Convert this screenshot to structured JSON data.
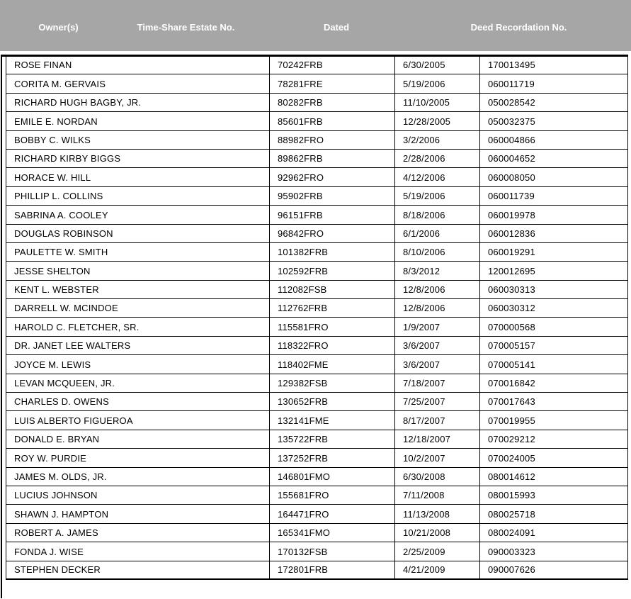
{
  "header": {
    "columns": [
      "Owner(s)",
      "Time-Share Estate No.",
      "Dated",
      "Deed Recordation No."
    ]
  },
  "colors": {
    "header_bg": "#a6a6a6",
    "header_text": "#ffffff",
    "border": "#000000"
  },
  "table": {
    "column_keys": [
      "owner",
      "estate_no",
      "dated",
      "deed_no"
    ],
    "rows": [
      {
        "owner": "ROSE FINAN",
        "estate_no": "70242FRB",
        "dated": "6/30/2005",
        "deed_no": "170013495"
      },
      {
        "owner": "CORITA M. GERVAIS",
        "estate_no": "78281FRE",
        "dated": "5/19/2006",
        "deed_no": "060011719"
      },
      {
        "owner": "RICHARD HUGH BAGBY, JR.",
        "estate_no": "80282FRB",
        "dated": "11/10/2005",
        "deed_no": "050028542"
      },
      {
        "owner": "EMILE E. NORDAN",
        "estate_no": "85601FRB",
        "dated": "12/28/2005",
        "deed_no": "050032375"
      },
      {
        "owner": "BOBBY C. WILKS",
        "estate_no": "88982FRO",
        "dated": "3/2/2006",
        "deed_no": "060004866"
      },
      {
        "owner": "RICHARD KIRBY BIGGS",
        "estate_no": "89862FRB",
        "dated": "2/28/2006",
        "deed_no": "060004652"
      },
      {
        "owner": "HORACE W. HILL",
        "estate_no": "92962FRO",
        "dated": "4/12/2006",
        "deed_no": "060008050"
      },
      {
        "owner": "PHILLIP L. COLLINS",
        "estate_no": "95902FRB",
        "dated": "5/19/2006",
        "deed_no": "060011739"
      },
      {
        "owner": "SABRINA A. COOLEY",
        "estate_no": "96151FRB",
        "dated": "8/18/2006",
        "deed_no": "060019978"
      },
      {
        "owner": "DOUGLAS ROBINSON",
        "estate_no": "96842FRO",
        "dated": "6/1/2006",
        "deed_no": "060012836"
      },
      {
        "owner": "PAULETTE W. SMITH",
        "estate_no": "101382FRB",
        "dated": "8/10/2006",
        "deed_no": "060019291"
      },
      {
        "owner": "JESSE SHELTON",
        "estate_no": "102592FRB",
        "dated": "8/3/2012",
        "deed_no": "120012695"
      },
      {
        "owner": "KENT L. WEBSTER",
        "estate_no": "112082FSB",
        "dated": "12/8/2006",
        "deed_no": "060030313"
      },
      {
        "owner": "DARRELL W. MCINDOE",
        "estate_no": "112762FRB",
        "dated": "12/8/2006",
        "deed_no": "060030312"
      },
      {
        "owner": "HAROLD C. FLETCHER, SR.",
        "estate_no": "115581FRO",
        "dated": "1/9/2007",
        "deed_no": "070000568"
      },
      {
        "owner": "DR. JANET LEE WALTERS",
        "estate_no": "118322FRO",
        "dated": "3/6/2007",
        "deed_no": "070005157"
      },
      {
        "owner": "JOYCE M. LEWIS",
        "estate_no": "118402FME",
        "dated": "3/6/2007",
        "deed_no": "070005141"
      },
      {
        "owner": "LEVAN MCQUEEN, JR.",
        "estate_no": "129382FSB",
        "dated": "7/18/2007",
        "deed_no": "070016842"
      },
      {
        "owner": "CHARLES D. OWENS",
        "estate_no": "130652FRB",
        "dated": "7/25/2007",
        "deed_no": "070017643"
      },
      {
        "owner": "LUIS ALBERTO FIGUEROA",
        "estate_no": "132141FME",
        "dated": "8/17/2007",
        "deed_no": "070019955"
      },
      {
        "owner": "DONALD E. BRYAN",
        "estate_no": "135722FRB",
        "dated": "12/18/2007",
        "deed_no": "070029212"
      },
      {
        "owner": "ROY W. PURDIE",
        "estate_no": "137252FRB",
        "dated": "10/2/2007",
        "deed_no": "070024005"
      },
      {
        "owner": "JAMES M. OLDS, JR.",
        "estate_no": "146801FMO",
        "dated": "6/30/2008",
        "deed_no": "080014612"
      },
      {
        "owner": "LUCIUS JOHNSON",
        "estate_no": "155681FRO",
        "dated": "7/11/2008",
        "deed_no": "080015993"
      },
      {
        "owner": "SHAWN J. HAMPTON",
        "estate_no": "164471FRO",
        "dated": "11/13/2008",
        "deed_no": "080025718"
      },
      {
        "owner": "ROBERT A. JAMES",
        "estate_no": "165341FMO",
        "dated": "10/21/2008",
        "deed_no": "080024091"
      },
      {
        "owner": "FONDA J. WISE",
        "estate_no": "170132FSB",
        "dated": "2/25/2009",
        "deed_no": "090003323"
      },
      {
        "owner": "STEPHEN DECKER",
        "estate_no": "172801FRB",
        "dated": "4/21/2009",
        "deed_no": "090007626"
      }
    ]
  }
}
